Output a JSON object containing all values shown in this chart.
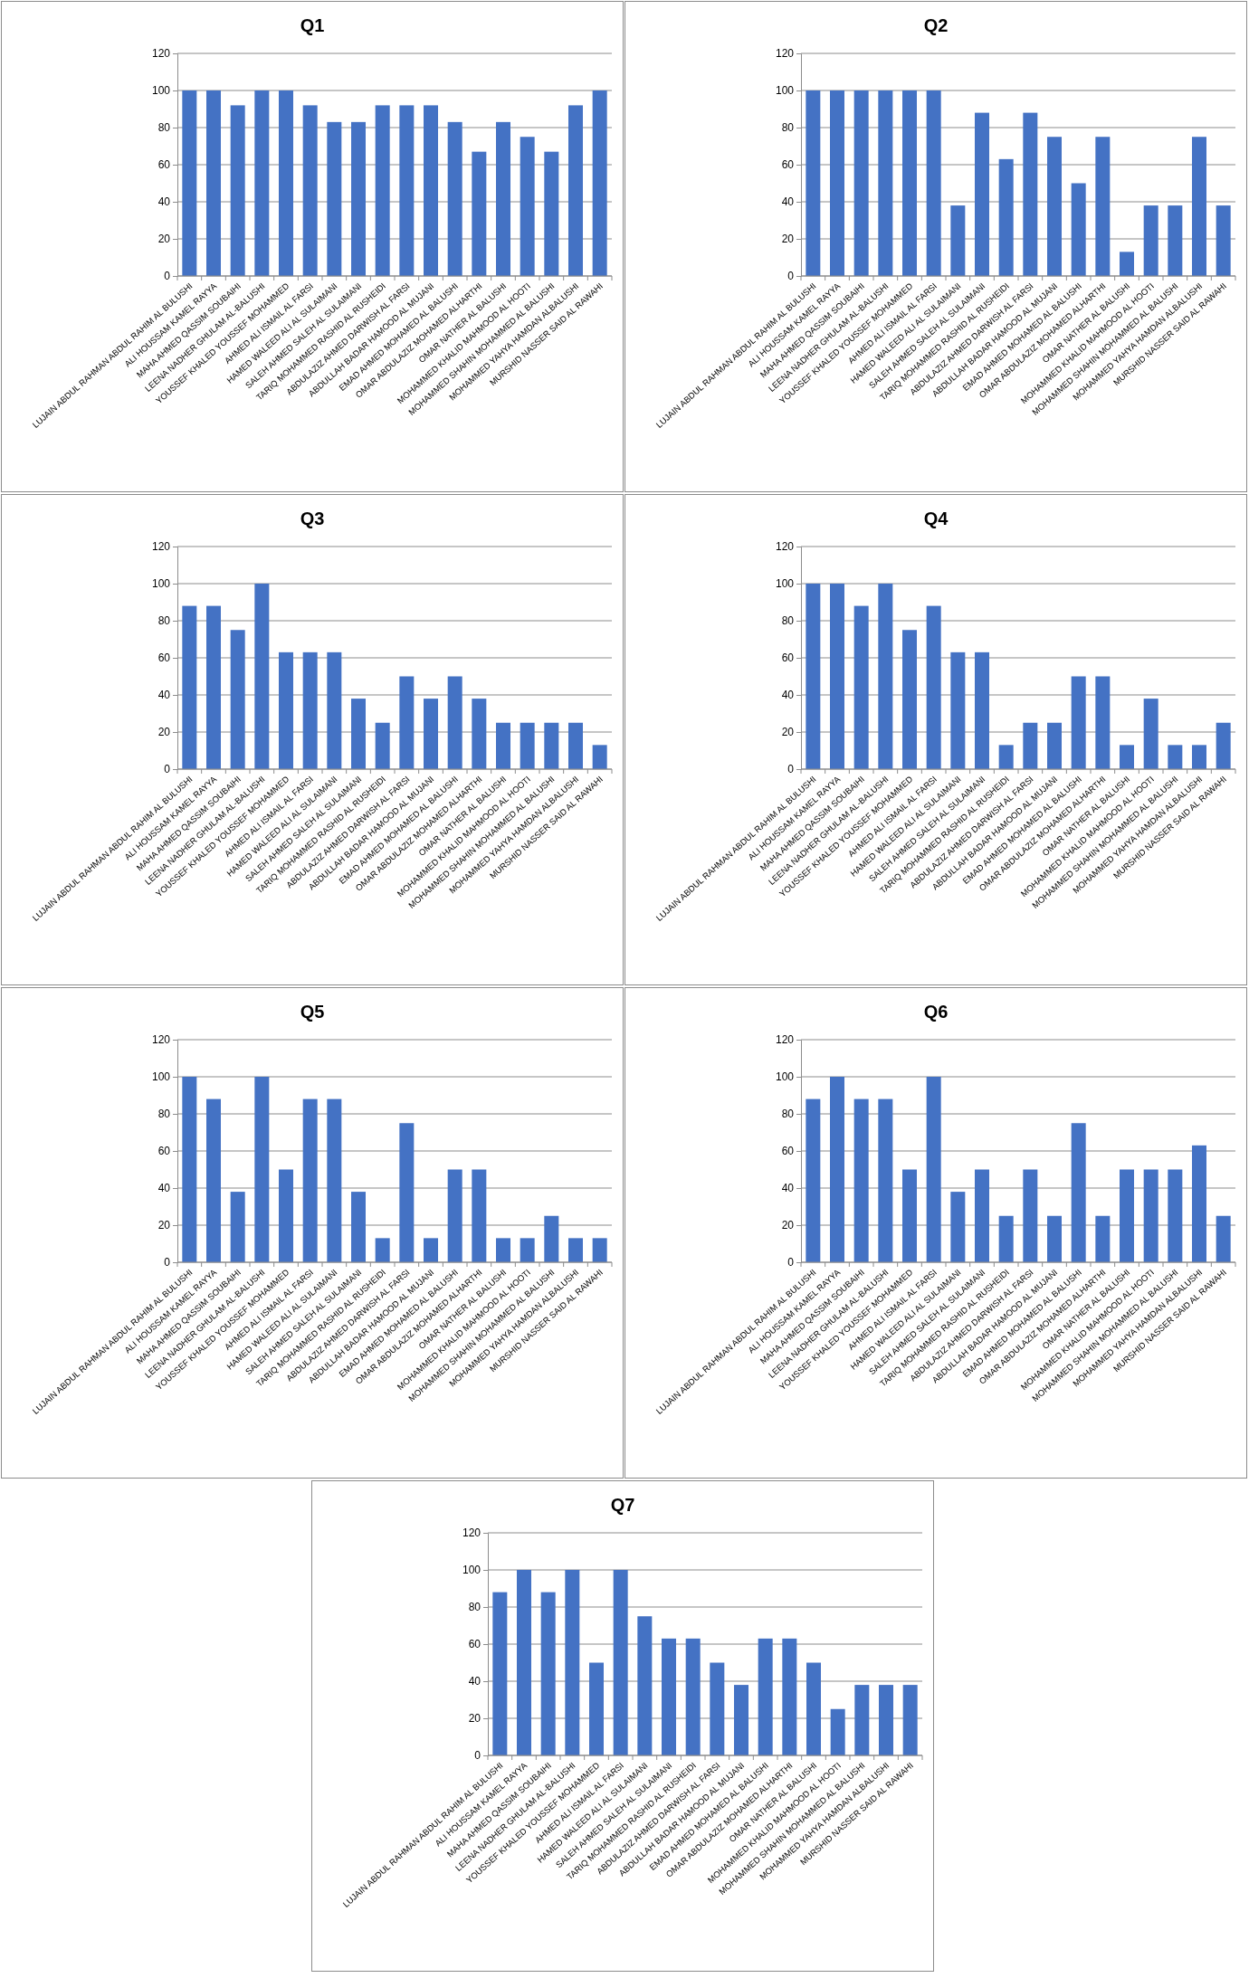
{
  "chart_data": [
    {
      "type": "bar",
      "title": "Q1",
      "categories": [
        "LUJAIN ABDUL RAHMAN ABDUL RAHIM AL BULUSHI",
        "ALI HOUSSAM KAMEL RAYYA",
        "MAHA AHMED QASSIM SOUBAIHI",
        "LEENA NADHER GHULAM AL-BALUSHI",
        "YOUSSEF KHALED YOUSSEF MOHAMMED",
        "AHMED ALI ISMAIL AL FARSI",
        "HAMED WALEED ALI AL SULAIMANI",
        "SALEH AHMED SALEH AL SULAIMANI",
        "TARIQ MOHAMMED RASHID AL RUSHEIDI",
        "ABDULAZIZ AHMED DARWISH AL FARSI",
        "ABDULLAH BADAR HAMOOD AL MUJANI",
        "EMAD AHMED MOHAMED AL BALUSHI",
        "OMAR ABDULAZIZ MOHAMED ALHARTHI",
        "OMAR NATHER AL BALUSHI",
        "MOHAMMED KHALID MAHMOOD AL HOOTI",
        "MOHAMMED SHAHIN MOHAMMED AL BALUSHI",
        "MOHAMMED YAHYA HAMDAN ALBALUSHI",
        "MURSHID NASSER SAID AL RAWAHI"
      ],
      "values": [
        100,
        100,
        92,
        100,
        100,
        92,
        83,
        83,
        92,
        92,
        92,
        83,
        67,
        83,
        75,
        67,
        92,
        100
      ],
      "color": "#4472c4",
      "ylim": [
        0,
        120
      ],
      "yticks": [
        0,
        20,
        40,
        60,
        80,
        100,
        120
      ],
      "grid": "y"
    },
    {
      "type": "bar",
      "title": "Q2",
      "categories": [
        "LUJAIN ABDUL RAHMAN ABDUL RAHIM AL BULUSHI",
        "ALI HOUSSAM KAMEL RAYYA",
        "MAHA AHMED QASSIM SOUBAIHI",
        "LEENA NADHER GHULAM AL-BALUSHI",
        "YOUSSEF KHALED YOUSSEF MOHAMMED",
        "AHMED ALI ISMAIL AL FARSI",
        "HAMED WALEED ALI AL SULAIMANI",
        "SALEH AHMED SALEH AL SULAIMANI",
        "TARIQ MOHAMMED RASHID AL RUSHEIDI",
        "ABDULAZIZ AHMED DARWISH AL FARSI",
        "ABDULLAH BADAR HAMOOD AL MUJANI",
        "EMAD AHMED MOHAMED AL BALUSHI",
        "OMAR ABDULAZIZ MOHAMED ALHARTHI",
        "OMAR NATHER AL BALUSHI",
        "MOHAMMED KHALID MAHMOOD AL HOOTI",
        "MOHAMMED SHAHIN MOHAMMED AL BALUSHI",
        "MOHAMMED YAHYA HAMDAN ALBALUSHI",
        "MURSHID NASSER SAID AL RAWAHI"
      ],
      "values": [
        100,
        100,
        100,
        100,
        100,
        100,
        38,
        88,
        63,
        88,
        75,
        50,
        75,
        13,
        38,
        38,
        75,
        38
      ],
      "color": "#4472c4",
      "ylim": [
        0,
        120
      ],
      "yticks": [
        0,
        20,
        40,
        60,
        80,
        100,
        120
      ],
      "grid": "y"
    },
    {
      "type": "bar",
      "title": "Q3",
      "categories": [
        "LUJAIN ABDUL RAHMAN ABDUL RAHIM AL BULUSHI",
        "ALI HOUSSAM KAMEL RAYYA",
        "MAHA AHMED QASSIM SOUBAIHI",
        "LEENA NADHER GHULAM AL-BALUSHI",
        "YOUSSEF KHALED YOUSSEF MOHAMMED",
        "AHMED ALI ISMAIL AL FARSI",
        "HAMED WALEED ALI AL SULAIMANI",
        "SALEH AHMED SALEH AL SULAIMANI",
        "TARIQ MOHAMMED RASHID AL RUSHEIDI",
        "ABDULAZIZ AHMED DARWISH AL FARSI",
        "ABDULLAH BADAR HAMOOD AL MUJANI",
        "EMAD AHMED MOHAMED AL BALUSHI",
        "OMAR ABDULAZIZ MOHAMED ALHARTHI",
        "OMAR NATHER AL BALUSHI",
        "MOHAMMED KHALID MAHMOOD AL HOOTI",
        "MOHAMMED SHAHIN MOHAMMED AL BALUSHI",
        "MOHAMMED YAHYA HAMDAN ALBALUSHI",
        "MURSHID NASSER SAID AL RAWAHI"
      ],
      "values": [
        88,
        88,
        75,
        100,
        63,
        63,
        63,
        38,
        25,
        50,
        38,
        50,
        38,
        25,
        25,
        25,
        25,
        13
      ],
      "color": "#4472c4",
      "ylim": [
        0,
        120
      ],
      "yticks": [
        0,
        20,
        40,
        60,
        80,
        100,
        120
      ],
      "grid": "y"
    },
    {
      "type": "bar",
      "title": "Q4",
      "categories": [
        "LUJAIN ABDUL RAHMAN ABDUL RAHIM AL BULUSHI",
        "ALI HOUSSAM KAMEL RAYYA",
        "MAHA AHMED QASSIM SOUBAIHI",
        "LEENA NADHER GHULAM AL-BALUSHI",
        "YOUSSEF KHALED YOUSSEF MOHAMMED",
        "AHMED ALI ISMAIL AL FARSI",
        "HAMED WALEED ALI AL SULAIMANI",
        "SALEH AHMED SALEH AL SULAIMANI",
        "TARIQ MOHAMMED RASHID AL RUSHEIDI",
        "ABDULAZIZ AHMED DARWISH AL FARSI",
        "ABDULLAH BADAR HAMOOD AL MUJANI",
        "EMAD AHMED MOHAMED AL BALUSHI",
        "OMAR ABDULAZIZ MOHAMED ALHARTHI",
        "OMAR NATHER AL BALUSHI",
        "MOHAMMED KHALID MAHMOOD AL HOOTI",
        "MOHAMMED SHAHIN MOHAMMED AL BALUSHI",
        "MOHAMMED YAHYA HAMDAN ALBALUSHI",
        "MURSHID NASSER SAID AL RAWAHI"
      ],
      "values": [
        100,
        100,
        88,
        100,
        75,
        88,
        63,
        63,
        13,
        25,
        25,
        50,
        50,
        13,
        38,
        13,
        13,
        25
      ],
      "color": "#4472c4",
      "ylim": [
        0,
        120
      ],
      "yticks": [
        0,
        20,
        40,
        60,
        80,
        100,
        120
      ],
      "grid": "y"
    },
    {
      "type": "bar",
      "title": "Q5",
      "categories": [
        "LUJAIN ABDUL RAHMAN ABDUL RAHIM AL BULUSHI",
        "ALI HOUSSAM KAMEL RAYYA",
        "MAHA AHMED QASSIM SOUBAIHI",
        "LEENA NADHER GHULAM AL-BALUSHI",
        "YOUSSEF KHALED YOUSSEF MOHAMMED",
        "AHMED ALI ISMAIL AL FARSI",
        "HAMED WALEED ALI AL SULAIMANI",
        "SALEH AHMED SALEH AL SULAIMANI",
        "TARIQ MOHAMMED RASHID AL RUSHEIDI",
        "ABDULAZIZ AHMED DARWISH AL FARSI",
        "ABDULLAH BADAR HAMOOD AL MUJANI",
        "EMAD AHMED MOHAMED AL BALUSHI",
        "OMAR ABDULAZIZ MOHAMED ALHARTHI",
        "OMAR NATHER AL BALUSHI",
        "MOHAMMED KHALID MAHMOOD AL HOOTI",
        "MOHAMMED SHAHIN MOHAMMED AL BALUSHI",
        "MOHAMMED YAHYA HAMDAN ALBALUSHI",
        "MURSHID NASSER SAID AL RAWAHI"
      ],
      "values": [
        100,
        88,
        38,
        100,
        50,
        88,
        88,
        38,
        13,
        75,
        13,
        50,
        50,
        13,
        13,
        25,
        13,
        13
      ],
      "color": "#4472c4",
      "ylim": [
        0,
        120
      ],
      "yticks": [
        0,
        20,
        40,
        60,
        80,
        100,
        120
      ],
      "grid": "y"
    },
    {
      "type": "bar",
      "title": "Q6",
      "categories": [
        "LUJAIN ABDUL RAHMAN ABDUL RAHIM AL BULUSHI",
        "ALI HOUSSAM KAMEL RAYYA",
        "MAHA AHMED QASSIM SOUBAIHI",
        "LEENA NADHER GHULAM AL-BALUSHI",
        "YOUSSEF KHALED YOUSSEF MOHAMMED",
        "AHMED ALI ISMAIL AL FARSI",
        "HAMED WALEED ALI AL SULAIMANI",
        "SALEH AHMED SALEH AL SULAIMANI",
        "TARIQ MOHAMMED RASHID AL RUSHEIDI",
        "ABDULAZIZ AHMED DARWISH AL FARSI",
        "ABDULLAH BADAR HAMOOD AL MUJANI",
        "EMAD AHMED MOHAMED AL BALUSHI",
        "OMAR ABDULAZIZ MOHAMED ALHARTHI",
        "OMAR NATHER AL BALUSHI",
        "MOHAMMED KHALID MAHMOOD AL HOOTI",
        "MOHAMMED SHAHIN MOHAMMED AL BALUSHI",
        "MOHAMMED YAHYA HAMDAN ALBALUSHI",
        "MURSHID NASSER SAID AL RAWAHI"
      ],
      "values": [
        88,
        100,
        88,
        88,
        50,
        100,
        38,
        50,
        25,
        50,
        25,
        75,
        25,
        50,
        50,
        50,
        63,
        25
      ],
      "color": "#4472c4",
      "ylim": [
        0,
        120
      ],
      "yticks": [
        0,
        20,
        40,
        60,
        80,
        100,
        120
      ],
      "grid": "y"
    },
    {
      "type": "bar",
      "title": "Q7",
      "categories": [
        "LUJAIN ABDUL RAHMAN ABDUL RAHIM AL BULUSHI",
        "ALI HOUSSAM KAMEL RAYYA",
        "MAHA AHMED QASSIM SOUBAIHI",
        "LEENA NADHER GHULAM AL-BALUSHI",
        "YOUSSEF KHALED YOUSSEF MOHAMMED",
        "AHMED ALI ISMAIL AL FARSI",
        "HAMED WALEED ALI AL SULAIMANI",
        "SALEH AHMED SALEH AL SULAIMANI",
        "TARIQ MOHAMMED RASHID AL RUSHEIDI",
        "ABDULAZIZ AHMED DARWISH AL FARSI",
        "ABDULLAH BADAR HAMOOD AL MUJANI",
        "EMAD AHMED MOHAMED AL BALUSHI",
        "OMAR ABDULAZIZ MOHAMED ALHARTHI",
        "OMAR NATHER AL BALUSHI",
        "MOHAMMED KHALID MAHMOOD AL HOOTI",
        "MOHAMMED SHAHIN MOHAMMED AL BALUSHI",
        "MOHAMMED YAHYA HAMDAN ALBALUSHI",
        "MURSHID NASSER SAID AL RAWAHI"
      ],
      "values": [
        88,
        100,
        88,
        100,
        50,
        100,
        75,
        63,
        63,
        50,
        38,
        63,
        63,
        50,
        25,
        38,
        38,
        38
      ],
      "color": "#4472c4",
      "ylim": [
        0,
        120
      ],
      "yticks": [
        0,
        20,
        40,
        60,
        80,
        100,
        120
      ],
      "grid": "y"
    }
  ]
}
